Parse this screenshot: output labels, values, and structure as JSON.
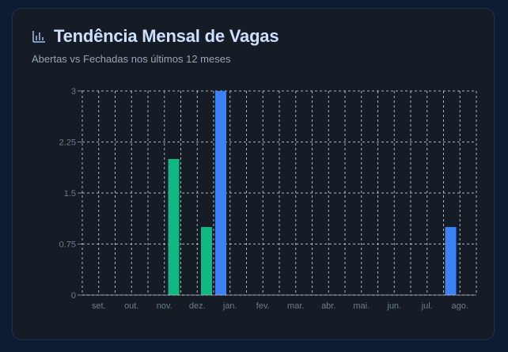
{
  "card": {
    "title_icon": "bar-chart-icon",
    "title": "Tendência Mensal de Vagas",
    "subtitle": "Abertas vs Fechadas nos últimos 12 meses"
  },
  "colors": {
    "abertas": "#3b82f6",
    "fechadas": "#10b981",
    "grid": "#c8ccd4",
    "axis_text": "#6f7b8f",
    "title": "#cfe0ff",
    "background": "#0d1b33",
    "card": "#161c26"
  },
  "chart_data": {
    "type": "bar",
    "title": "Tendência Mensal de Vagas",
    "subtitle": "Abertas vs Fechadas nos últimos 12 meses",
    "categories": [
      "set.",
      "out.",
      "nov.",
      "dez.",
      "jan.",
      "fev.",
      "mar.",
      "abr.",
      "mai.",
      "jun.",
      "jul.",
      "ago."
    ],
    "series": [
      {
        "values": [
          0,
          0,
          0,
          2,
          1,
          0,
          0,
          0,
          0,
          0,
          0,
          0
        ]
      },
      {
        "values": [
          0,
          0,
          0,
          0,
          3,
          0,
          0,
          0,
          0,
          0,
          0,
          1
        ]
      }
    ],
    "yticks": [
      "0",
      "0.75",
      "1.5",
      "2.25",
      "3"
    ],
    "ylim": [
      0,
      3
    ],
    "grid": true,
    "xlabel": "",
    "ylabel": ""
  }
}
